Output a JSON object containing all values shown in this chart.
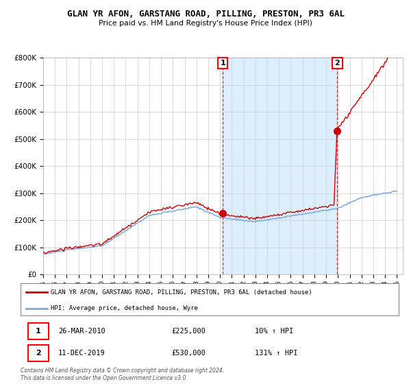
{
  "title": "GLAN YR AFON, GARSTANG ROAD, PILLING, PRESTON, PR3 6AL",
  "subtitle": "Price paid vs. HM Land Registry's House Price Index (HPI)",
  "legend_label_red": "GLAN YR AFON, GARSTANG ROAD, PILLING, PRESTON, PR3 6AL (detached house)",
  "legend_label_blue": "HPI: Average price, detached house, Wyre",
  "table_row1": [
    "1",
    "26-MAR-2010",
    "£225,000",
    "10% ↑ HPI"
  ],
  "table_row2": [
    "2",
    "11-DEC-2019",
    "£530,000",
    "131% ↑ HPI"
  ],
  "footer": "Contains HM Land Registry data © Crown copyright and database right 2024.\nThis data is licensed under the Open Government Licence v3.0.",
  "sale1_year": 2010.23,
  "sale1_price": 225000,
  "sale2_year": 2019.94,
  "sale2_price": 530000,
  "red_color": "#cc0000",
  "blue_color": "#7aaadd",
  "shade_color": "#ddeeff",
  "grid_color": "#cccccc",
  "bg_color": "#ffffff",
  "ylim": [
    0,
    800000
  ],
  "yticks": [
    0,
    100000,
    200000,
    300000,
    400000,
    500000,
    600000,
    700000,
    800000
  ],
  "xlim": [
    1995,
    2025.5
  ]
}
